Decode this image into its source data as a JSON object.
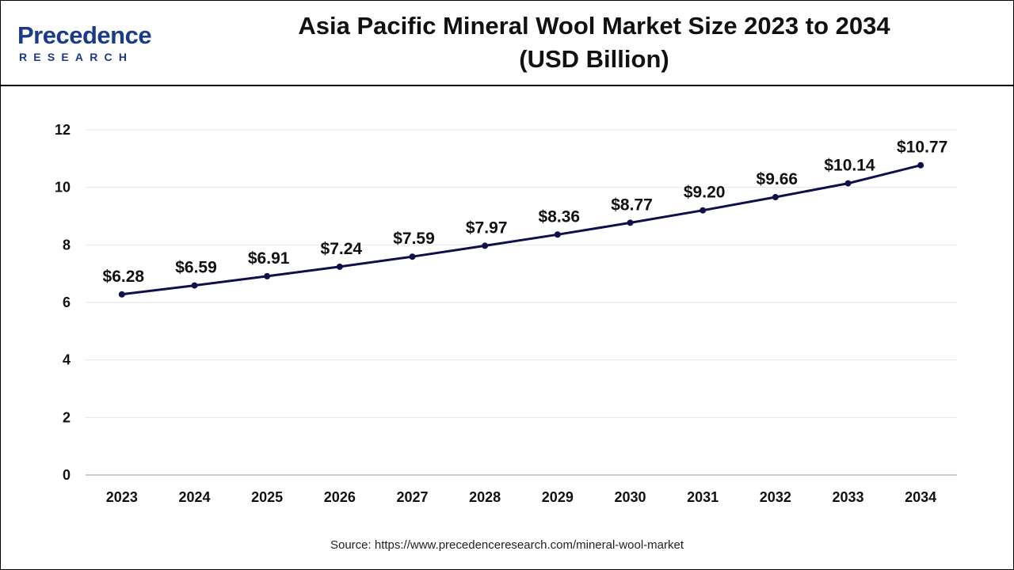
{
  "logo": {
    "main": "Precedence",
    "sub": "RESEARCH",
    "brand_color": "#1a3a8a"
  },
  "title": {
    "line1": "Asia Pacific Mineral Wool Market Size 2023 to 2034",
    "line2": "(USD Billion)"
  },
  "source": "Source: https://www.precedenceresearch.com/mineral-wool-market",
  "chart_data": {
    "type": "line",
    "title": "Asia Pacific Mineral Wool Market Size 2023 to 2034 (USD Billion)",
    "xlabel": "",
    "ylabel": "",
    "categories": [
      "2023",
      "2024",
      "2025",
      "2026",
      "2027",
      "2028",
      "2029",
      "2030",
      "2031",
      "2032",
      "2033",
      "2034"
    ],
    "series": [
      {
        "values": [
          6.28,
          6.59,
          6.91,
          7.24,
          7.59,
          7.97,
          8.36,
          8.77,
          9.2,
          9.66,
          10.14,
          10.77
        ],
        "labels": [
          "$6.28",
          "$6.59",
          "$6.91",
          "$7.24",
          "$7.59",
          "$7.97",
          "$8.36",
          "$8.77",
          "$9.20",
          "$9.66",
          "$10.14",
          "$10.77"
        ],
        "color": "#0f0f4a"
      }
    ],
    "ylim": [
      0,
      12
    ],
    "yticks": [
      0,
      2,
      4,
      6,
      8,
      10,
      12
    ],
    "grid": true,
    "legend": "none"
  }
}
